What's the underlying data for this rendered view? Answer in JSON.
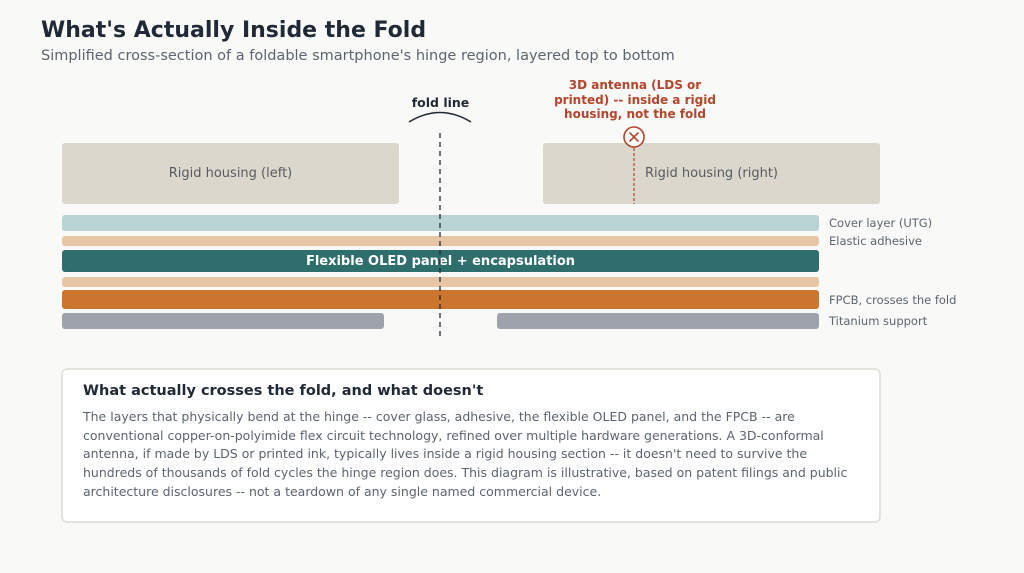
{
  "header": {
    "title": "What's Actually Inside the Fold",
    "subtitle": "Simplified cross-section of a foldable smartphone's hinge region, layered top to bottom"
  },
  "diagram": {
    "housing_left": "Rigid housing (left)",
    "housing_right": "Rigid housing (right)",
    "fold_label": "fold line",
    "antenna_label": "3D antenna (LDS or printed) -- inside a rigid housing, not the fold",
    "oled_label": "Flexible OLED panel + encapsulation",
    "layer_labels": {
      "cover": "Cover layer (UTG)",
      "adhesive": "Elastic adhesive",
      "fpcb": "FPCB, crosses the fold",
      "titanium": "Titanium support"
    },
    "colors": {
      "housing": "#dbd7cc",
      "cover": "#b8d3d4",
      "adhesive": "#e7c6a6",
      "oled": "#2e6f6e",
      "fpcb": "#cc752e",
      "titanium": "#9ea2ad",
      "antenna_accent": "#b5452b"
    },
    "icons": {
      "antenna_marker": "circle-x-icon"
    }
  },
  "card": {
    "title": "What actually crosses the fold, and what doesn't",
    "body": "The layers that physically bend at the hinge -- cover glass, adhesive, the flexible OLED panel, and the FPCB -- are conventional copper-on-polyimide flex circuit technology, refined over multiple hardware generations. A 3D-conformal antenna, if made by LDS or printed ink, typically lives inside a rigid housing section -- it doesn't need to survive the hundreds of thousands of fold cycles the hinge region does. This diagram is illustrative, based on patent filings and public architecture disclosures -- not a teardown of any single named commercial device."
  }
}
